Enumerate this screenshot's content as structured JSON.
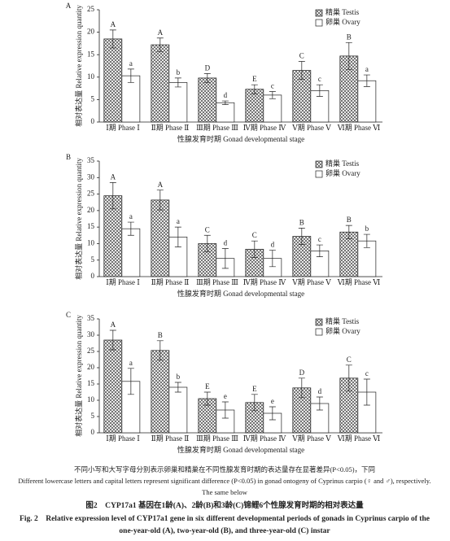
{
  "chart_data": [
    {
      "type": "bar",
      "panel": "A",
      "ylim": [
        0,
        25
      ],
      "yticks": [
        0,
        5,
        10,
        15,
        20,
        25
      ],
      "y_label": "相对表达量 Relative expression quantity",
      "x_label": "性腺发育时期 Gonad developmental stage",
      "categories": [
        "Ⅰ期 Phase Ⅰ",
        "Ⅱ期 Phase Ⅱ",
        "Ⅲ期 Phase Ⅲ",
        "Ⅳ期 Phase Ⅳ",
        "Ⅴ期 Phase Ⅴ",
        "Ⅵ期 Phase Ⅵ"
      ],
      "series": [
        {
          "name": "精巢 Testis",
          "color": "#444444",
          "values": [
            18.5,
            17.2,
            9.8,
            7.3,
            11.5,
            14.7
          ],
          "errors": [
            2,
            1.5,
            1,
            1,
            2,
            3
          ],
          "labels": [
            "A",
            "A",
            "D",
            "E",
            "C",
            "B"
          ]
        },
        {
          "name": "卵巢 Ovary",
          "color": "#ffffff",
          "values": [
            10.3,
            8.8,
            4.3,
            6.0,
            7.0,
            9.2
          ],
          "errors": [
            1.5,
            1,
            0.4,
            0.8,
            1.3,
            1.3
          ],
          "labels": [
            "a",
            "b",
            "d",
            "c",
            "c",
            "a"
          ]
        }
      ]
    },
    {
      "type": "bar",
      "panel": "B",
      "ylim": [
        0,
        35
      ],
      "yticks": [
        0,
        5,
        10,
        15,
        20,
        25,
        30,
        35
      ],
      "y_label": "相对表达量 Relative expression quantity",
      "x_label": "性腺发育时期 Gonad developmental stage",
      "categories": [
        "Ⅰ期 Phase Ⅰ",
        "Ⅱ期 Phase Ⅱ",
        "Ⅲ期 Phase Ⅲ",
        "Ⅳ期 Phase Ⅳ",
        "Ⅴ期 Phase Ⅴ",
        "Ⅵ期 Phase Ⅵ"
      ],
      "series": [
        {
          "name": "精巢 Testis",
          "color": "#444444",
          "values": [
            24.5,
            23.2,
            10,
            8.3,
            12.2,
            13.5
          ],
          "errors": [
            4,
            3,
            2.5,
            2.5,
            2.5,
            2
          ],
          "labels": [
            "A",
            "A",
            "C",
            "C",
            "B",
            "B"
          ]
        },
        {
          "name": "卵巢 Ovary",
          "color": "#ffffff",
          "values": [
            14.5,
            12,
            5.5,
            5.5,
            7.8,
            10.8
          ],
          "errors": [
            2,
            3,
            3,
            2.5,
            1.8,
            2
          ],
          "labels": [
            "a",
            "a",
            "d",
            "d",
            "c",
            "b"
          ]
        }
      ]
    },
    {
      "type": "bar",
      "panel": "C",
      "ylim": [
        0,
        35
      ],
      "yticks": [
        0,
        5,
        10,
        15,
        20,
        25,
        30,
        35
      ],
      "y_label": "相对表达量 Relative expression quantity",
      "x_label": "性腺发育时期 Gonad developmental stage",
      "categories": [
        "Ⅰ期 Phase Ⅰ",
        "Ⅱ期 Phase Ⅱ",
        "Ⅲ期 Phase Ⅲ",
        "Ⅳ期 Phase Ⅳ",
        "Ⅴ期 Phase Ⅴ",
        "Ⅵ期 Phase Ⅵ"
      ],
      "series": [
        {
          "name": "精巢 Testis",
          "color": "#444444",
          "values": [
            28.5,
            25.3,
            10.5,
            9.3,
            13.8,
            16.8
          ],
          "errors": [
            3,
            3,
            2,
            2.5,
            3,
            4
          ],
          "labels": [
            "A",
            "B",
            "E",
            "E",
            "D",
            "C"
          ]
        },
        {
          "name": "卵巢 Ovary",
          "color": "#ffffff",
          "values": [
            15.8,
            14,
            7,
            6,
            9,
            12.5
          ],
          "errors": [
            4,
            1.5,
            2.5,
            2,
            2,
            4
          ],
          "labels": [
            "a",
            "b",
            "e",
            "e",
            "d",
            "c"
          ]
        }
      ]
    }
  ],
  "caption": {
    "note_cn": "不同小写和大写字母分别表示卵巢和精巢在不同性腺发育时期的表达量存在显著差异(P<0.05)，下同",
    "note_en": "Different lowercase letters and capital letters represent significant difference (P<0.05) in gonad ontogeny of Cyprinus carpio (♀ and ♂), respectively.",
    "note_en_2": "The same below",
    "title_cn": "图2　CYP17a1 基因在1龄(A)、2龄(B)和3龄(C)锦鲤6个性腺发育时期的相对表达量",
    "title_en": "Fig. 2　Relative expression level of CYP17a1 gene in six different developmental periods of gonads in Cyprinus carpio of the",
    "title_en_2": "one-year-old (A), two-year-old (B), and three-year-old (C) instar"
  }
}
